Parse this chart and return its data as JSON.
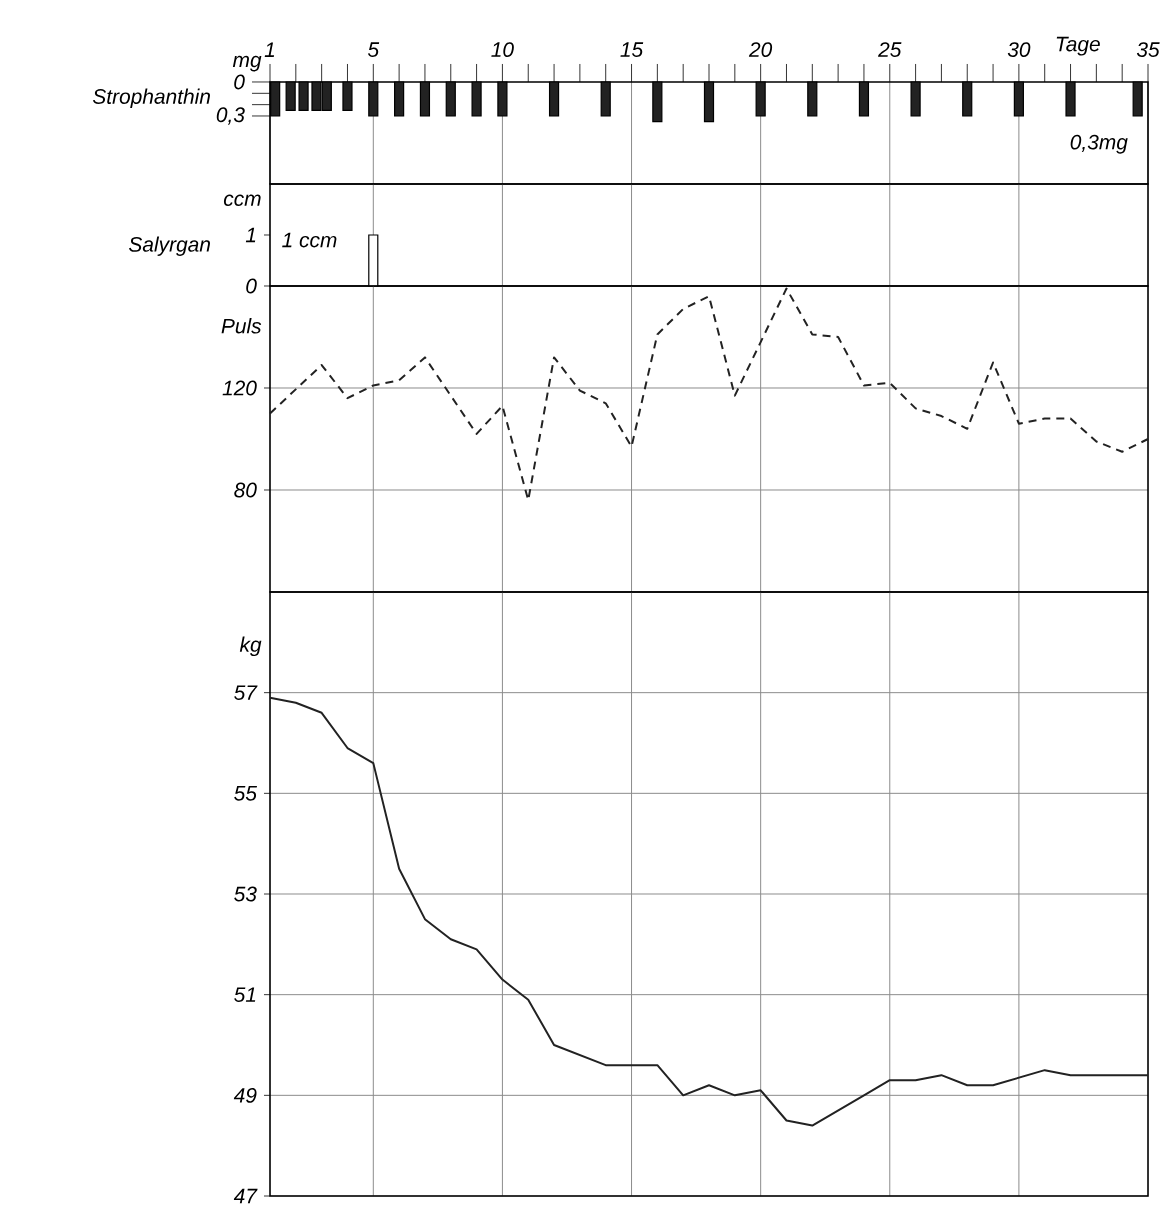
{
  "chart_data": [
    {
      "type": "bar",
      "title": "Strophanthin",
      "ylabel": "mg",
      "xlabel": "Tage",
      "annotations": [
        "0,3mg"
      ],
      "x": [
        1.2,
        1.8,
        2.3,
        2.8,
        3.2,
        4,
        5,
        6,
        7,
        8,
        9,
        10,
        12,
        14,
        16,
        18,
        20,
        22,
        24,
        26,
        28,
        30,
        32,
        34.6
      ],
      "values": [
        0.3,
        0.25,
        0.25,
        0.25,
        0.25,
        0.25,
        0.3,
        0.3,
        0.3,
        0.3,
        0.3,
        0.3,
        0.3,
        0.3,
        0.35,
        0.35,
        0.3,
        0.3,
        0.3,
        0.3,
        0.3,
        0.3,
        0.3,
        0.3
      ],
      "color": "#222222",
      "xlim": [
        1,
        35
      ],
      "xticks": [
        1,
        {
          "value": 2,
          "label": null
        },
        {
          "value": 3,
          "label": null
        },
        {
          "value": 4,
          "label": null
        },
        5,
        {
          "value": 6,
          "label": null
        },
        {
          "value": 7,
          "label": null
        },
        {
          "value": 8,
          "label": null
        },
        {
          "value": 9,
          "label": null
        },
        10,
        {
          "value": 11,
          "label": null
        },
        {
          "value": 12,
          "label": null
        },
        {
          "value": 13,
          "label": null
        },
        {
          "value": 14,
          "label": null
        },
        15,
        {
          "value": 16,
          "label": null
        },
        {
          "value": 17,
          "label": null
        },
        {
          "value": 18,
          "label": null
        },
        {
          "value": 19,
          "label": null
        },
        20,
        {
          "value": 21,
          "label": null
        },
        {
          "value": 22,
          "label": null
        },
        {
          "value": 23,
          "label": null
        },
        {
          "value": 24,
          "label": null
        },
        25,
        {
          "value": 26,
          "label": null
        },
        {
          "value": 27,
          "label": null
        },
        {
          "value": 28,
          "label": null
        },
        {
          "value": 29,
          "label": null
        },
        30,
        {
          "value": 31,
          "label": null
        },
        {
          "value": 32,
          "label": null
        },
        {
          "value": 33,
          "label": null
        },
        {
          "value": 34,
          "label": null
        },
        35
      ],
      "ylim": [
        0.9,
        0
      ],
      "yticks": [
        0,
        {
          "value": 0.1,
          "label": null
        },
        {
          "value": 0.2,
          "label": null
        },
        {
          "value": 0.3,
          "label": "0,3"
        }
      ],
      "grid": "x"
    },
    {
      "type": "bar",
      "title": "Salyrgan",
      "ylabel": "ccm",
      "annotations": [
        "1 ccm"
      ],
      "tick_labels": "y",
      "x": [
        5
      ],
      "values": [
        1
      ],
      "color": "#ffffff",
      "xlim": [
        1,
        35
      ],
      "xticks": [
        5,
        10,
        15,
        20,
        25,
        30
      ],
      "ylim": [
        0,
        2
      ],
      "yticks": [
        0,
        1
      ],
      "grid": "x"
    },
    {
      "type": "line",
      "ylabel": "Puls",
      "line_style": "dashed",
      "tick_labels": "y",
      "x": [
        1,
        3,
        4,
        5,
        6,
        7,
        9,
        10,
        11,
        12,
        13,
        14,
        15,
        16,
        17,
        18,
        19,
        21,
        22,
        23,
        24,
        25,
        26,
        27,
        28,
        29,
        30,
        31,
        32,
        33,
        34,
        35
      ],
      "values": [
        110,
        129,
        116,
        121,
        123,
        132,
        102,
        113,
        76,
        132,
        119,
        114,
        97,
        141,
        151,
        156,
        117,
        159,
        141,
        140,
        121,
        122,
        112,
        109,
        104,
        130,
        106,
        108,
        108,
        99,
        95,
        100
      ],
      "color": "#222222",
      "xlim": [
        1,
        35
      ],
      "xticks": [
        5,
        10,
        15,
        20,
        25,
        30
      ],
      "ylim": [
        40,
        160
      ],
      "yticks": [
        80,
        120
      ],
      "grid": true
    },
    {
      "type": "line",
      "ylabel": "kg",
      "line_style": "solid",
      "tick_labels": "y",
      "x": [
        1,
        2,
        3,
        4,
        5,
        6,
        7,
        8,
        9,
        10,
        11,
        12,
        14,
        16,
        17,
        18,
        19,
        20,
        21,
        22,
        24,
        25,
        26,
        27,
        28,
        29,
        31,
        32,
        35
      ],
      "values": [
        56.9,
        56.8,
        56.6,
        55.9,
        55.6,
        53.5,
        52.5,
        52.1,
        51.9,
        51.3,
        50.9,
        50.0,
        49.6,
        49.6,
        49.0,
        49.2,
        49.0,
        49.1,
        48.5,
        48.4,
        49.0,
        49.3,
        49.3,
        49.4,
        49.2,
        49.2,
        49.5,
        49.4,
        49.4
      ],
      "color": "#222222",
      "xlim": [
        1,
        35
      ],
      "xticks": [
        5,
        10,
        15,
        20,
        25,
        30
      ],
      "ylim": [
        47,
        59
      ],
      "yticks": [
        47,
        49,
        51,
        53,
        55,
        57
      ],
      "grid": true
    }
  ]
}
